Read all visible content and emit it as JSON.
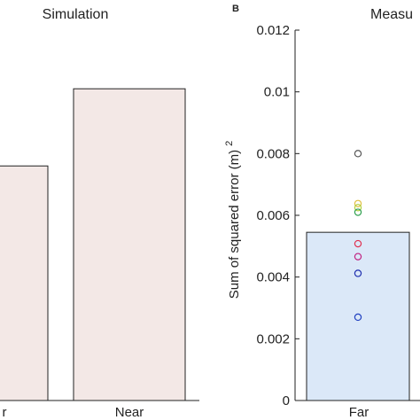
{
  "chart_data": [
    {
      "type": "bar",
      "title": "Simulation",
      "categories": [
        "Far",
        "Near"
      ],
      "values": [
        0.0076,
        0.0101
      ],
      "ylim": [
        0,
        0.012
      ],
      "visible_category_text": [
        "r",
        "Near"
      ],
      "colors": {
        "bar_fill": "#f3e8e6",
        "bar_stroke": "#222222"
      }
    },
    {
      "type": "bar",
      "panel_label": "B",
      "title": "Measu",
      "ylabel": "Sum of squared error (m)",
      "ylabel_superscript": "2",
      "categories": [
        "Far"
      ],
      "values": [
        0.00545
      ],
      "ylim": [
        0,
        0.012
      ],
      "yticks": [
        "0",
        "0.002",
        "0.004",
        "0.006",
        "0.008",
        "0.01",
        "0.012"
      ],
      "ytick_values": [
        0,
        0.002,
        0.004,
        0.006,
        0.008,
        0.01,
        0.012
      ],
      "points": [
        {
          "y": 0.008,
          "color": "#555555"
        },
        {
          "y": 0.00638,
          "color": "#e0c040"
        },
        {
          "y": 0.00625,
          "color": "#b0d040"
        },
        {
          "y": 0.0061,
          "color": "#30a050"
        },
        {
          "y": 0.00508,
          "color": "#e03050"
        },
        {
          "y": 0.00466,
          "color": "#c02080"
        },
        {
          "y": 0.00412,
          "color": "#2030b0"
        },
        {
          "y": 0.0027,
          "color": "#2040c0"
        }
      ],
      "colors": {
        "bar_fill": "#dbe8f8",
        "bar_stroke": "#222222"
      }
    }
  ]
}
